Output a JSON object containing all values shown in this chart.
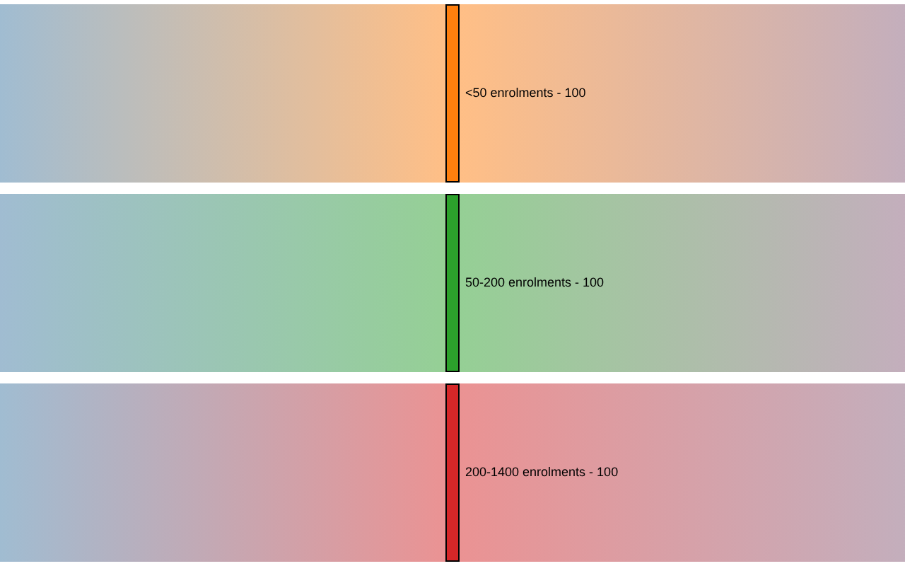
{
  "chart_data": {
    "type": "other",
    "categories": [
      "<50 enrolments -",
      "50-200 enrolments -",
      "200-1400 enrolments -"
    ],
    "values": [
      100,
      100,
      100
    ],
    "value_labels": [
      "100",
      "100",
      "100"
    ],
    "colors": [
      "#ff7f0e",
      "#2ca02c",
      "#d62728"
    ]
  }
}
